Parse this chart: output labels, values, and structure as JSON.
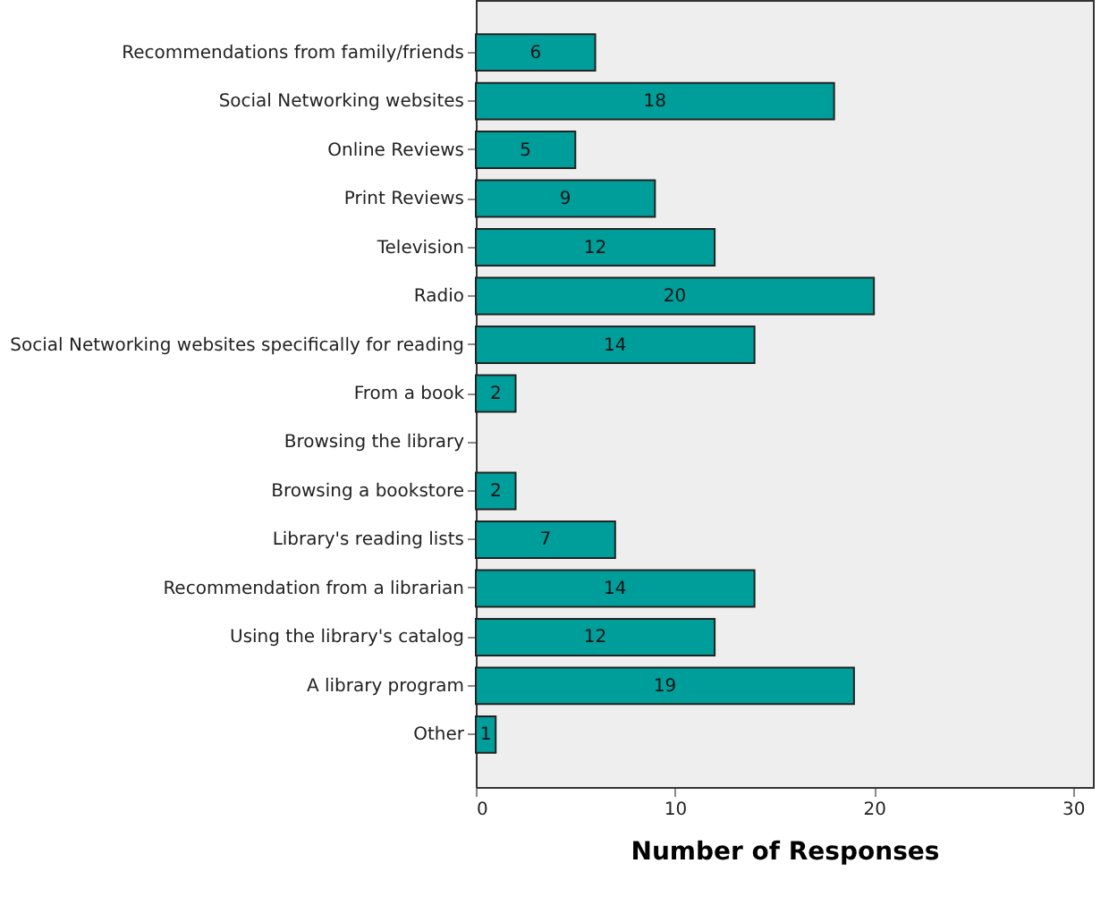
{
  "chart_data": {
    "type": "bar",
    "orientation": "horizontal",
    "xlabel": "Number of Responses",
    "categories": [
      "Recommendations from family/friends",
      "Social Networking websites",
      "Online Reviews",
      "Print Reviews",
      "Television",
      "Radio",
      "Social Networking websites specifically for reading",
      "From a book",
      "Browsing the library",
      "Browsing a bookstore",
      "Library's reading lists",
      "Recommendation from a librarian",
      "Using the library's catalog",
      "A library program",
      "Other"
    ],
    "values": [
      6,
      18,
      5,
      9,
      12,
      20,
      14,
      2,
      0,
      2,
      7,
      14,
      12,
      19,
      1
    ],
    "value_labels": [
      "6",
      "18",
      "5",
      "9",
      "12",
      "20",
      "14",
      "2",
      null,
      "2",
      "7",
      "14",
      "12",
      "19",
      "1"
    ],
    "color": "#009e9a",
    "xlim": [
      0,
      31
    ],
    "xticks": [
      0,
      10,
      20,
      30
    ],
    "grid": false
  }
}
